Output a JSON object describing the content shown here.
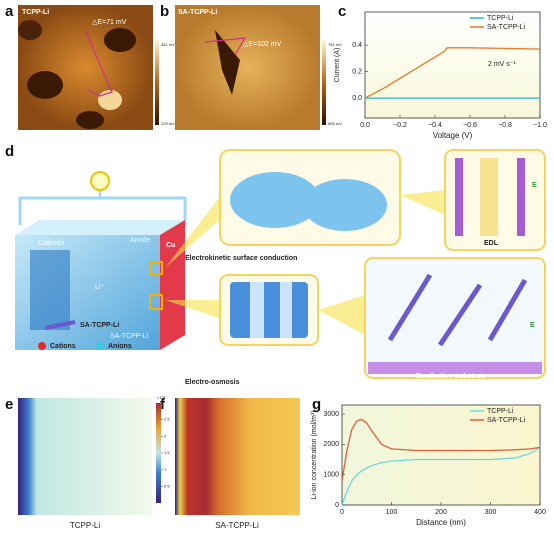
{
  "panel_labels": [
    "a",
    "b",
    "c",
    "d",
    "e",
    "f",
    "g"
  ],
  "panel_a": {
    "sample": "TCPP-Li",
    "delta_e": "△E=71 mV",
    "scale_max": "451 mV",
    "scale_min": "229 mV"
  },
  "panel_b": {
    "sample": "SA-TCPP-Li",
    "delta_e": "△E=102 mV",
    "scale_max": "781 mV",
    "scale_min": "596 mV"
  },
  "diagram": {
    "cathode": "Cathode",
    "anode": "Anode",
    "cu": "Cu",
    "li_ion": "Li⁺",
    "cell": "SA-TCPP-Li",
    "surface_conduction": "Electrokinetic surface conduction",
    "edl": "EDL",
    "field_top": "E",
    "field_bottom": "E",
    "legend": {
      "fiber": "SA-TCPP-Li",
      "cations": "Cations",
      "anions": "Anions"
    },
    "electro_osmosis": "Electro-osmosis",
    "substrate": "Conductive substrate"
  },
  "heatmaps": {
    "panels": [
      {
        "label": "TCPP-Li"
      },
      {
        "label": "SA-TCPP-Li"
      }
    ],
    "colorbar": {
      "exponent": "×10³",
      "lim": [
        0,
        3
      ],
      "ticks": [
        0.5,
        1,
        1.5,
        2,
        2.5
      ]
    }
  },
  "chart_data": [
    {
      "type": "line",
      "x_label": "Voltage (V)",
      "y_label": "Current (A)",
      "annotation": "2 mV s⁻¹",
      "legend": "upper right",
      "x": [
        0,
        -0.1,
        -0.2,
        -0.3,
        -0.4,
        -0.45,
        -0.47,
        -0.6,
        -0.8,
        -1.0
      ],
      "series": [
        {
          "name": "TCPP-Li",
          "color": "#2bb3c9",
          "values": [
            0,
            0,
            0,
            0,
            0,
            0,
            0,
            0,
            0,
            0
          ]
        },
        {
          "name": "SA-TCPP-Li",
          "color": "#e8792b",
          "values": [
            0,
            0.07,
            0.15,
            0.23,
            0.31,
            0.35,
            0.38,
            0.38,
            0.375,
            0.37
          ]
        }
      ],
      "xlim": [
        0,
        -1
      ],
      "xticks": [
        {
          "value": 0,
          "label": "0.0"
        },
        {
          "value": -0.2,
          "label": "−0.2"
        },
        {
          "value": -0.4,
          "label": "−0.4"
        },
        {
          "value": -0.6,
          "label": "−0.6"
        },
        {
          "value": -0.8,
          "label": "−0.8"
        },
        {
          "value": -1,
          "label": "−1.0"
        }
      ],
      "ylim": [
        -0.15,
        0.65
      ],
      "yticks": [
        {
          "value": 0,
          "label": "0.0"
        },
        0.2,
        0.4
      ]
    },
    {
      "type": "line",
      "x_label": "Distance (nm)",
      "y_label": "Li-ion concentration (mol/m³)",
      "legend": "upper right",
      "x": [
        0,
        10,
        20,
        30,
        40,
        50,
        60,
        80,
        100,
        150,
        200,
        250,
        300,
        350,
        380,
        400
      ],
      "series": [
        {
          "name": "TCPP-Li",
          "color": "#6fd6e0",
          "values": [
            0,
            450,
            800,
            1000,
            1130,
            1220,
            1300,
            1400,
            1450,
            1500,
            1500,
            1500,
            1500,
            1550,
            1700,
            1900
          ]
        },
        {
          "name": "SA-TCPP-Li",
          "color": "#d9603b",
          "values": [
            800,
            1800,
            2500,
            2780,
            2820,
            2700,
            2450,
            2000,
            1850,
            1800,
            1800,
            1800,
            1800,
            1820,
            1850,
            1900
          ]
        }
      ],
      "xlim": [
        0,
        400
      ],
      "xticks": [
        0,
        100,
        200,
        300,
        400
      ],
      "ylim": [
        0,
        3300
      ],
      "yticks": [
        0,
        1000,
        2000,
        3000
      ]
    }
  ]
}
